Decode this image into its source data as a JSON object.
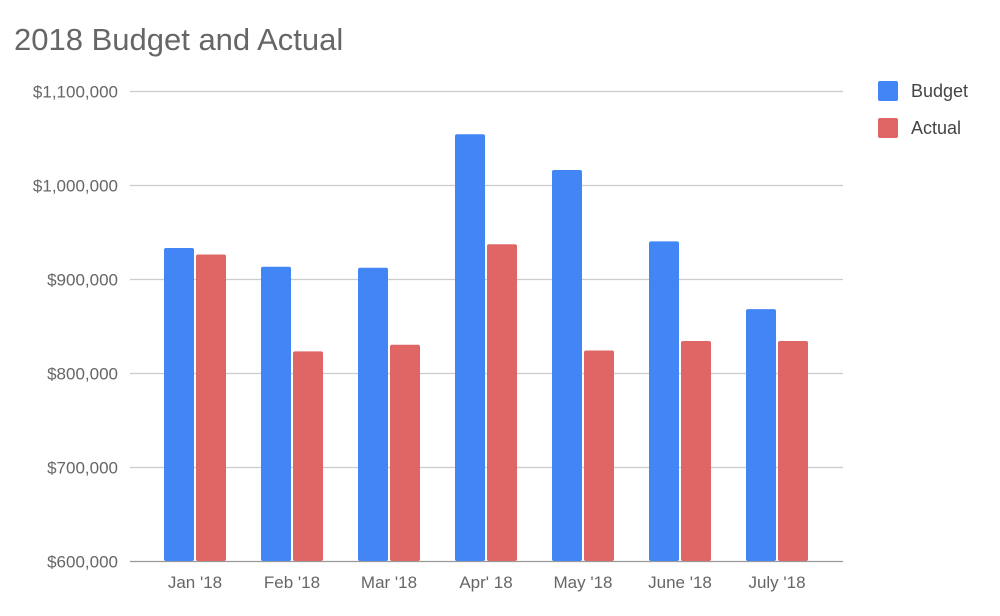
{
  "chart_data": {
    "type": "bar",
    "title": "2018 Budget and Actual",
    "xlabel": "",
    "ylabel": "",
    "categories": [
      "Jan '18",
      "Feb '18",
      "Mar '18",
      "Apr' 18",
      "May '18",
      "June '18",
      "July '18"
    ],
    "series": [
      {
        "name": "Budget",
        "color": "#4285f4",
        "values": [
          933000,
          913000,
          912000,
          1054000,
          1016000,
          940000,
          868000
        ]
      },
      {
        "name": "Actual",
        "color": "#e06666",
        "values": [
          926000,
          823000,
          830000,
          937000,
          824000,
          834000,
          834000
        ]
      }
    ],
    "ylim": [
      600000,
      1100000
    ],
    "yticks": [
      600000,
      700000,
      800000,
      900000,
      1000000,
      1100000
    ],
    "ytick_labels": [
      "$600,000",
      "$700,000",
      "$800,000",
      "$900,000",
      "$1,000,000",
      "$1,100,000"
    ],
    "grid": true,
    "legend_position": "right"
  }
}
